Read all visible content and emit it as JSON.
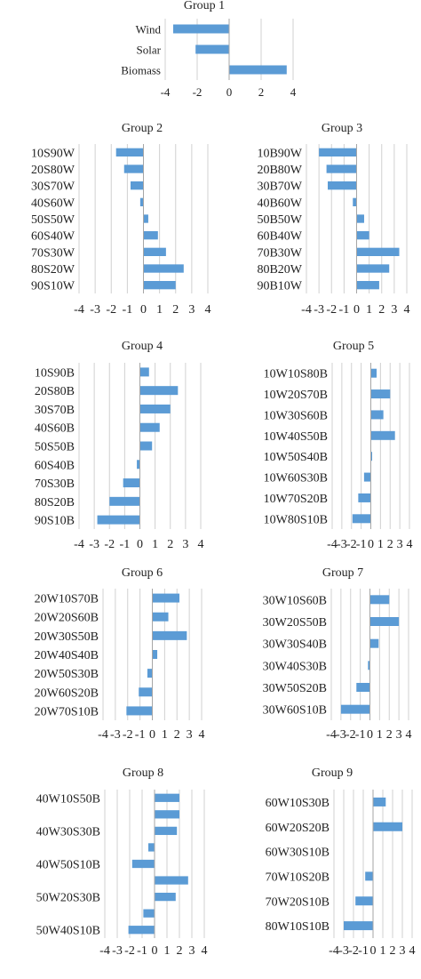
{
  "colors": {
    "bar": "#5b9bd5",
    "grid": "#d0d0d0",
    "axis": "#a6a6a6",
    "text": "#222222"
  },
  "chart_data": [
    {
      "type": "bar",
      "orientation": "horizontal",
      "title": "Group 1",
      "categories": [
        "Wind",
        "Solar",
        "Biomass"
      ],
      "values": [
        -3.5,
        -2.1,
        3.6
      ],
      "xlim": [
        -4,
        4
      ],
      "xticks": [
        -4,
        -2,
        0,
        2,
        4
      ],
      "grid": true
    },
    {
      "type": "bar",
      "orientation": "horizontal",
      "title": "Group 2",
      "categories": [
        "10S90W",
        "20S80W",
        "30S70W",
        "40S60W",
        "50S50W",
        "60S40W",
        "70S30W",
        "80S20W",
        "90S10W"
      ],
      "values": [
        -1.7,
        -1.2,
        -0.8,
        -0.2,
        0.3,
        0.9,
        1.4,
        2.5,
        2.0
      ],
      "xlim": [
        -4,
        4
      ],
      "xticks": [
        -4,
        -3,
        -2,
        -1,
        0,
        1,
        2,
        3,
        4
      ],
      "grid": true
    },
    {
      "type": "bar",
      "orientation": "horizontal",
      "title": "Group 3",
      "categories": [
        "10B90W",
        "20B80W",
        "30B70W",
        "40B60W",
        "50B50W",
        "60B40W",
        "70B30W",
        "80B20W",
        "90B10W"
      ],
      "values": [
        -3.0,
        -2.4,
        -2.3,
        -0.3,
        0.6,
        1.0,
        3.4,
        2.6,
        1.8
      ],
      "xlim": [
        -4,
        4
      ],
      "xticks": [
        -4,
        -3,
        -2,
        -1,
        0,
        1,
        2,
        3,
        4
      ],
      "grid": true
    },
    {
      "type": "bar",
      "orientation": "horizontal",
      "title": "Group 4",
      "categories": [
        "10S90B",
        "20S80B",
        "30S70B",
        "40S60B",
        "50S50B",
        "60S40B",
        "70S30B",
        "80S20B",
        "90S10B"
      ],
      "values": [
        0.6,
        2.5,
        2.0,
        1.3,
        0.8,
        -0.2,
        -1.1,
        -2.0,
        -2.8
      ],
      "xlim": [
        -4,
        4
      ],
      "xticks": [
        -4,
        -3,
        -2,
        -1,
        0,
        1,
        2,
        3,
        4
      ],
      "grid": true
    },
    {
      "type": "bar",
      "orientation": "horizontal",
      "title": "Group 5",
      "categories": [
        "10W10S80B",
        "10W20S70B",
        "10W30S60B",
        "10W40S50B",
        "10W50S40B",
        "10W60S30B",
        "10W70S20B",
        "10W80S10B"
      ],
      "values": [
        0.6,
        2.0,
        1.3,
        2.5,
        0.1,
        -0.7,
        -1.3,
        -1.9
      ],
      "xlim": [
        -4,
        4
      ],
      "xticks": [
        -4,
        -3,
        -2,
        -1,
        0,
        1,
        2,
        3,
        4
      ],
      "grid": true
    },
    {
      "type": "bar",
      "orientation": "horizontal",
      "title": "Group 6",
      "categories": [
        "20W10S70B",
        "20W20S60B",
        "20W30S50B",
        "20W40S40B",
        "20W50S30B",
        "20W60S20B",
        "20W70S10B"
      ],
      "values": [
        2.2,
        1.3,
        2.8,
        0.4,
        -0.4,
        -1.1,
        -2.1
      ],
      "xlim": [
        -4,
        4
      ],
      "xticks": [
        -4,
        -3,
        -2,
        -1,
        0,
        1,
        2,
        3,
        4
      ],
      "grid": true
    },
    {
      "type": "bar",
      "orientation": "horizontal",
      "title": "Group 7",
      "categories": [
        "30W10S60B",
        "30W20S50B",
        "30W30S40B",
        "30W40S30B",
        "30W50S20B",
        "30W60S10B"
      ],
      "values": [
        2.0,
        3.0,
        0.9,
        -0.2,
        -1.4,
        -3.0
      ],
      "xlim": [
        -4,
        4
      ],
      "xticks": [
        -4,
        -3,
        -2,
        -1,
        0,
        1,
        2,
        3,
        4
      ],
      "grid": true
    },
    {
      "type": "bar",
      "orientation": "horizontal",
      "title": "Group 8",
      "categories": [
        "40W10S50B",
        "",
        "40W30S30B",
        "",
        "40W50S10B",
        "",
        "50W20S30B",
        "",
        "50W40S10B"
      ],
      "values": [
        2.0,
        2.0,
        1.8,
        -0.5,
        -1.8,
        2.7,
        1.7,
        -0.9,
        -2.1
      ],
      "xlim": [
        -4,
        4
      ],
      "xticks": [
        -4,
        -3,
        -2,
        -1,
        0,
        1,
        2,
        3,
        4
      ],
      "grid": true
    },
    {
      "type": "bar",
      "orientation": "horizontal",
      "title": "Group 9",
      "categories": [
        "60W10S30B",
        "60W20S20B",
        "60W30S10B",
        "70W10S20B",
        "70W20S10B",
        "80W10S10B"
      ],
      "values": [
        1.3,
        3.0,
        0.0,
        -0.8,
        -1.8,
        -3.0
      ],
      "xlim": [
        -4,
        4
      ],
      "xticks": [
        -4,
        -3,
        -2,
        -1,
        0,
        1,
        2,
        3,
        4
      ],
      "grid": true
    }
  ]
}
